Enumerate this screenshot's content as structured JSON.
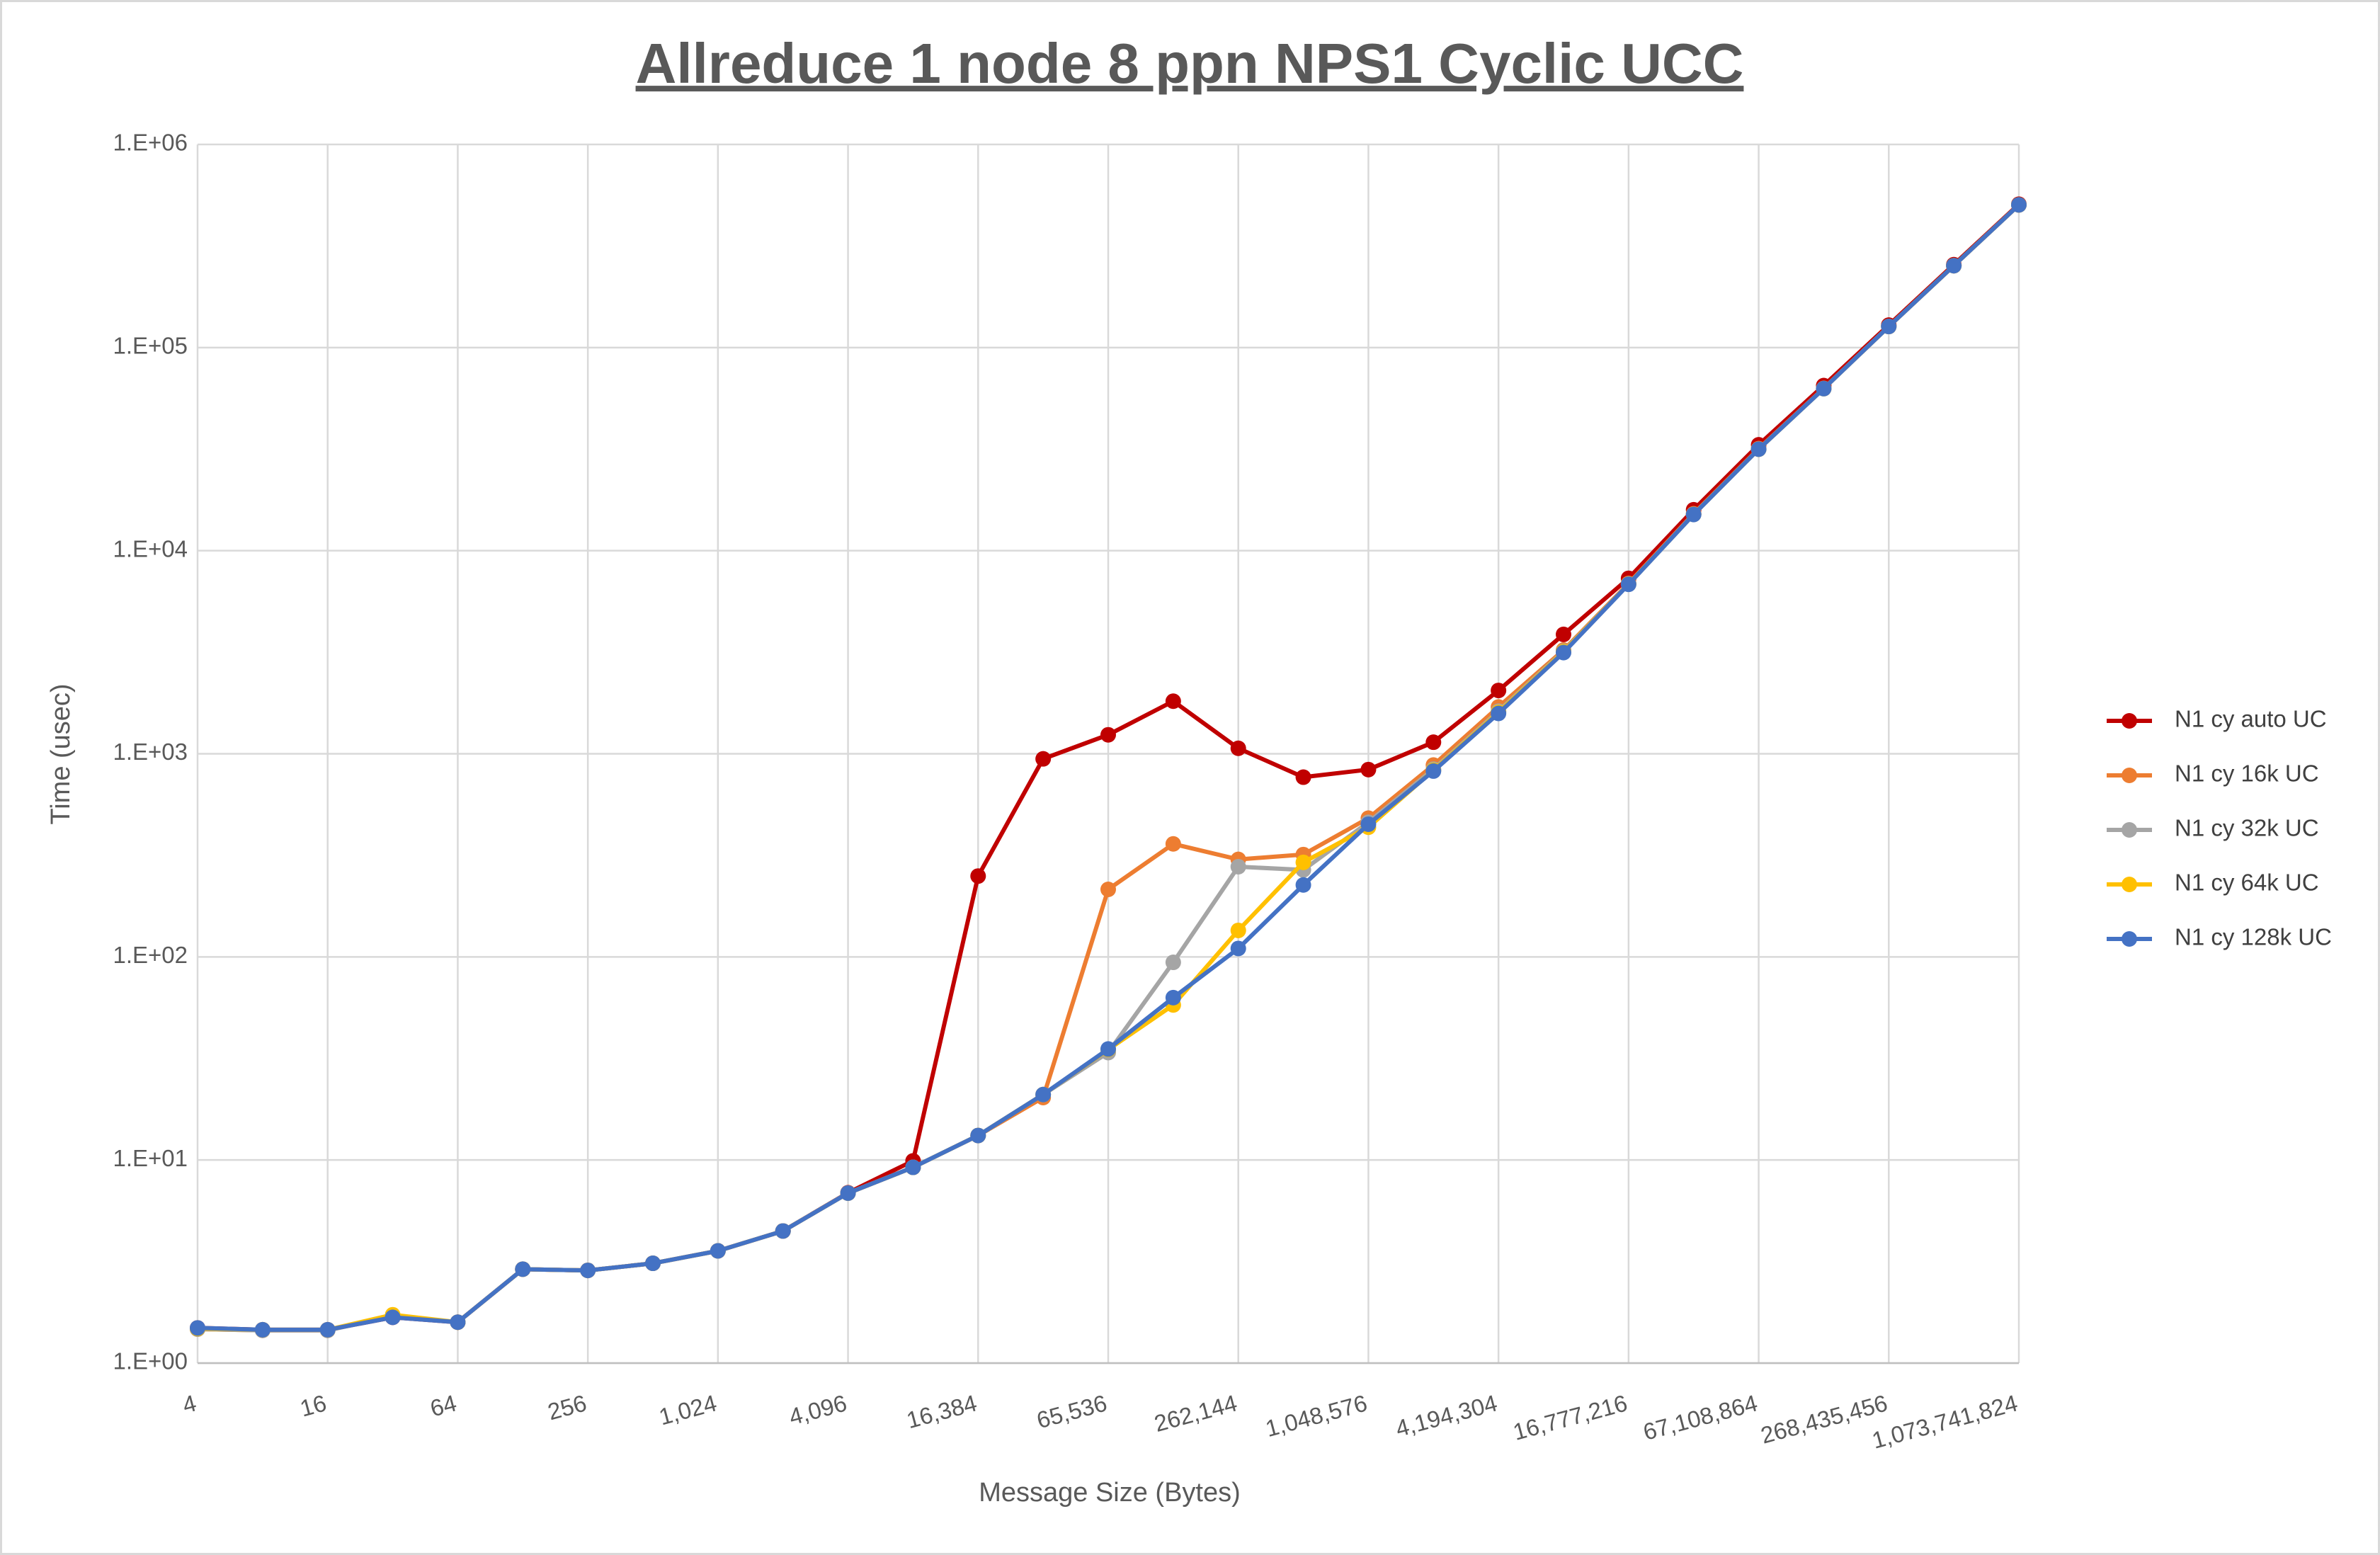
{
  "chart_data": {
    "type": "line",
    "title": "Allreduce 1 node 8 ppn NPS1 Cyclic UCC",
    "x_label": "Message Size (Bytes)",
    "y_label": "Time (usec)",
    "y_scale": "log",
    "grid": true,
    "legend": "right",
    "categories": [
      "4",
      null,
      "16",
      null,
      "64",
      null,
      "256",
      null,
      "1,024",
      null,
      "4,096",
      null,
      "16,384",
      null,
      "65,536",
      null,
      "262,144",
      null,
      "1,048,576",
      null,
      "4,194,304",
      null,
      "16,777,216",
      null,
      "67,108,864",
      null,
      "268,435,456",
      null,
      "1,073,741,824"
    ],
    "ylim": [
      1,
      1000000
    ],
    "yticks": [
      {
        "value": 1,
        "label": "1.E+00"
      },
      {
        "value": 10,
        "label": "1.E+01"
      },
      {
        "value": 100,
        "label": "1.E+02"
      },
      {
        "value": 1000,
        "label": "1.E+03"
      },
      {
        "value": 10000,
        "label": "1.E+04"
      },
      {
        "value": 100000,
        "label": "1.E+05"
      },
      {
        "value": 1000000,
        "label": "1.E+06"
      }
    ],
    "series": [
      {
        "name": "N1 cy auto UC",
        "color": "#c00000",
        "values": [
          1.49,
          1.46,
          1.46,
          1.68,
          1.59,
          2.9,
          2.86,
          3.1,
          3.57,
          4.47,
          6.9,
          9.9,
          250,
          944,
          1240,
          1815,
          1064,
          767,
          836,
          1140,
          2050,
          3870,
          7310,
          15900,
          33200,
          65000,
          129000,
          256000,
          508000
        ]
      },
      {
        "name": "N1 cy 16k UC",
        "color": "#ed7d31",
        "values": [
          1.47,
          1.45,
          1.45,
          1.7,
          1.59,
          2.9,
          2.86,
          3.1,
          3.57,
          4.47,
          6.87,
          9.2,
          13.2,
          20.3,
          215,
          360,
          302,
          319,
          482,
          880,
          1700,
          3240,
          6900,
          15200,
          31800,
          63000,
          127000,
          253000,
          504000
        ]
      },
      {
        "name": "N1 cy 32k UC",
        "color": "#a5a5a5",
        "values": [
          1.47,
          1.45,
          1.45,
          1.7,
          1.59,
          2.9,
          2.86,
          3.1,
          3.57,
          4.47,
          6.87,
          9.2,
          13.2,
          21.0,
          33.8,
          94,
          278,
          268,
          460,
          840,
          1620,
          3200,
          6850,
          15100,
          31600,
          62800,
          127000,
          253000,
          504000
        ]
      },
      {
        "name": "N1 cy 64k UC",
        "color": "#ffc000",
        "values": [
          1.48,
          1.46,
          1.46,
          1.73,
          1.59,
          2.9,
          2.86,
          3.1,
          3.57,
          4.47,
          6.87,
          9.2,
          13.2,
          21.0,
          35.0,
          58,
          135,
          292,
          435,
          830,
          1600,
          3180,
          6840,
          15080,
          31600,
          62800,
          127000,
          253000,
          504000
        ]
      },
      {
        "name": "N1 cy 128k UC",
        "color": "#4472c4",
        "values": [
          1.49,
          1.46,
          1.46,
          1.68,
          1.59,
          2.9,
          2.86,
          3.1,
          3.57,
          4.47,
          6.87,
          9.2,
          13.2,
          21.0,
          35.2,
          63,
          110,
          226,
          450,
          822,
          1580,
          3150,
          6830,
          15070,
          31600,
          62800,
          127000,
          253000,
          504000
        ]
      }
    ]
  }
}
